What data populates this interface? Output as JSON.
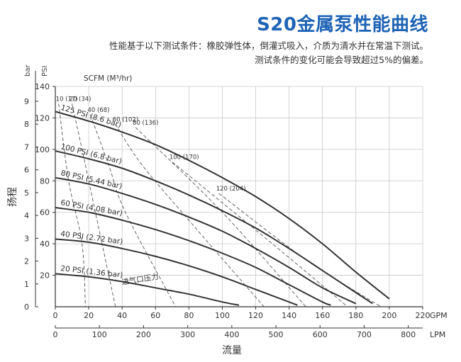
{
  "header": {
    "title": "S20金属泵性能曲线",
    "note_line1": "性能基于以下测试条件：橡胶弹性体，倒灌式吸入，介质为清水并在常温下测试。",
    "note_line2": "测试条件的变化可能会导致超过5%的偏差。"
  },
  "chart_data": {
    "type": "line",
    "title": "S20金属泵性能曲线",
    "xlabel": "流量",
    "ylabel": "扬程",
    "x_unit": "GPM",
    "x2_unit": "LPM",
    "y_unit": "PSI",
    "y2_unit": "bar",
    "air_label": "SCFM (M³/hr)",
    "inlet_label": "进气口压力",
    "xlim": [
      0,
      220
    ],
    "ylim": [
      0,
      140
    ],
    "x_ticks": [
      0,
      20,
      40,
      60,
      80,
      100,
      120,
      140,
      160,
      180,
      200,
      220
    ],
    "x2_ticks": [
      0,
      100,
      200,
      300,
      400,
      500,
      600,
      700,
      800
    ],
    "y_ticks": [
      20,
      40,
      60,
      80,
      100,
      120,
      140
    ],
    "y2_ticks": [
      0,
      1,
      2,
      3,
      4,
      5,
      6,
      7,
      8,
      9
    ],
    "grid": true,
    "series": [
      {
        "name": "125 PSI (8.6 bar)",
        "x": [
          0,
          20,
          40,
          60,
          80,
          100,
          120,
          140,
          160,
          180,
          200
        ],
        "y": [
          124,
          118,
          111,
          103,
          93,
          82,
          70,
          56,
          40,
          22,
          5
        ]
      },
      {
        "name": "100 PSI (6.8 bar)",
        "x": [
          0,
          20,
          40,
          60,
          80,
          100,
          120,
          140,
          160,
          180,
          190
        ],
        "y": [
          99,
          94,
          88,
          80,
          71,
          61,
          50,
          37,
          23,
          9,
          2
        ]
      },
      {
        "name": "80 PSI (5.44 bar)",
        "x": [
          0,
          20,
          40,
          60,
          80,
          100,
          120,
          140,
          160,
          180
        ],
        "y": [
          82,
          78,
          72,
          65,
          57,
          48,
          37,
          25,
          12,
          2
        ]
      },
      {
        "name": "60 PSI (4.08 bar)",
        "x": [
          0,
          20,
          40,
          60,
          80,
          100,
          120,
          140,
          160,
          165
        ],
        "y": [
          63,
          60,
          55,
          49,
          42,
          34,
          25,
          14,
          3,
          1
        ]
      },
      {
        "name": "40 PSI (2.72 bar)",
        "x": [
          0,
          20,
          40,
          60,
          80,
          100,
          120,
          140,
          145
        ],
        "y": [
          43,
          41,
          37,
          32,
          26,
          19,
          11,
          3,
          1
        ]
      },
      {
        "name": "20 PSI (1.36 bar)",
        "x": [
          0,
          20,
          40,
          60,
          80,
          100,
          110
        ],
        "y": [
          21,
          19,
          16,
          12,
          8,
          3,
          1
        ]
      }
    ],
    "air_consumption": [
      {
        "label": "10 (17)",
        "x": [
          2,
          8,
          16,
          18
        ],
        "y": [
          129,
          80,
          40,
          0
        ]
      },
      {
        "label": "20 (34)",
        "x": [
          10,
          16,
          28,
          36
        ],
        "y": [
          129,
          100,
          40,
          0
        ]
      },
      {
        "label": "40 (68)",
        "x": [
          21,
          32,
          42,
          72
        ],
        "y": [
          122,
          90,
          60,
          0
        ]
      },
      {
        "label": "60 (102)",
        "x": [
          36,
          52,
          84,
          125
        ],
        "y": [
          116,
          90,
          50,
          0
        ]
      },
      {
        "label": "80 (136)",
        "x": [
          48,
          100,
          150
        ],
        "y": [
          114,
          60,
          0
        ]
      },
      {
        "label": "100 (170)",
        "x": [
          70,
          130,
          175
        ],
        "y": [
          92,
          40,
          0
        ]
      },
      {
        "label": "120 (204)",
        "x": [
          98,
          150,
          195
        ],
        "y": [
          72,
          30,
          0
        ]
      }
    ]
  }
}
